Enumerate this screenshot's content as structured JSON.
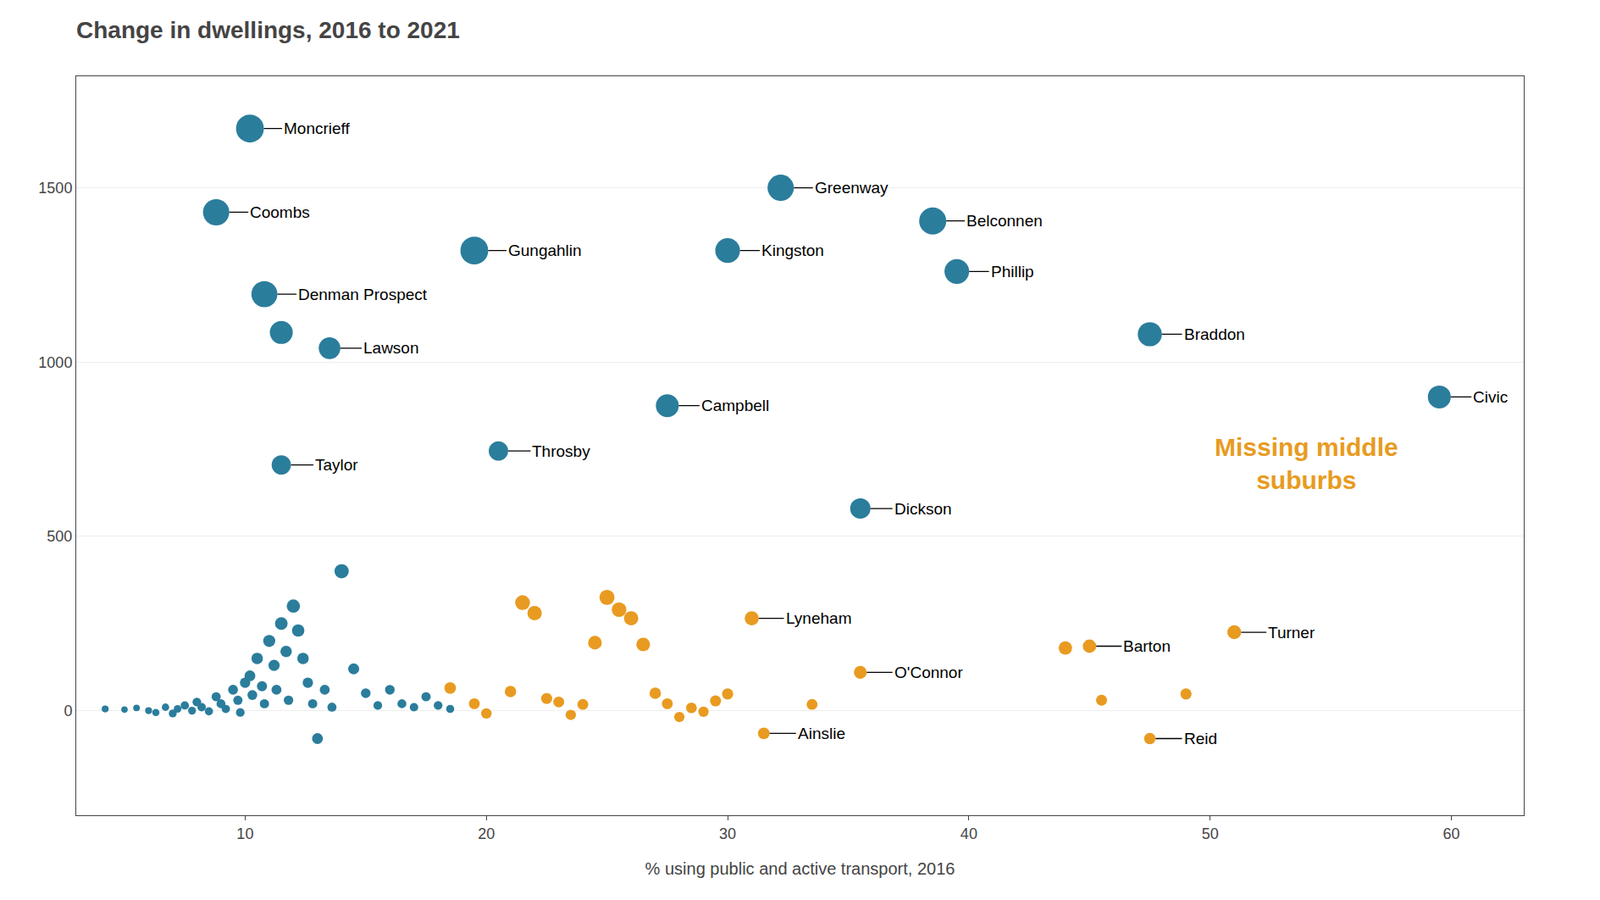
{
  "chart_data": {
    "type": "scatter",
    "title": "Change in dwellings, 2016 to 2021",
    "x_label": "% using public and active transport, 2016",
    "xlim": [
      3,
      63
    ],
    "ylim": [
      -300,
      1820
    ],
    "xticks": [
      10,
      20,
      30,
      40,
      50,
      60
    ],
    "yticks": [
      0,
      500,
      1000,
      1500
    ],
    "grid": "y",
    "series": [
      {
        "color": "#2b7d9c",
        "x": [
          4.2,
          5.0,
          5.5,
          6.0,
          6.3,
          6.7,
          7.0,
          7.2,
          7.5,
          7.8,
          8.0,
          8.2,
          8.5,
          8.8,
          9.0,
          9.2,
          9.5,
          9.7,
          9.8,
          10.0,
          10.2,
          10.3,
          10.5,
          10.7,
          10.8,
          11.0,
          11.2,
          11.3,
          11.5,
          11.7,
          11.8,
          12.0,
          12.2,
          12.4,
          12.6,
          12.8,
          13.0,
          13.3,
          13.6,
          14.0,
          14.5,
          15.0,
          15.5,
          16.0,
          16.5,
          17.0,
          17.5,
          18.0,
          18.5
        ],
        "y": [
          5,
          3,
          8,
          0,
          -5,
          10,
          -8,
          5,
          15,
          0,
          25,
          10,
          -2,
          40,
          20,
          5,
          60,
          30,
          -5,
          80,
          100,
          45,
          150,
          70,
          20,
          200,
          130,
          60,
          250,
          170,
          30,
          300,
          230,
          150,
          80,
          20,
          -80,
          60,
          10,
          400,
          120,
          50,
          15,
          60,
          20,
          10,
          40,
          15,
          5
        ],
        "sizes": [
          35,
          30,
          32,
          35,
          38,
          40,
          45,
          42,
          50,
          45,
          55,
          52,
          48,
          60,
          58,
          50,
          70,
          62,
          55,
          78,
          85,
          70,
          95,
          75,
          62,
          105,
          90,
          72,
          115,
          95,
          65,
          128,
          112,
          95,
          78,
          62,
          85,
          72,
          60,
          148,
          88,
          68,
          55,
          68,
          58,
          52,
          62,
          55,
          48
        ]
      },
      {
        "color": "#e89b20",
        "x": [
          18.5,
          19.5,
          20.0,
          21.0,
          21.5,
          22.0,
          22.5,
          23.0,
          23.5,
          24.0,
          24.5,
          25.0,
          25.5,
          26.0,
          26.5,
          27.0,
          27.5,
          28.0,
          28.5,
          29.0,
          29.5,
          30.0,
          33.5,
          44.0,
          45.5,
          49.0
        ],
        "y": [
          65,
          20,
          -8,
          55,
          310,
          280,
          35,
          25,
          -12,
          18,
          195,
          325,
          290,
          265,
          190,
          50,
          20,
          -18,
          8,
          -3,
          28,
          48,
          18,
          180,
          30,
          48
        ],
        "sizes": [
          100,
          85,
          80,
          95,
          160,
          150,
          88,
          85,
          78,
          85,
          135,
          165,
          155,
          148,
          135,
          95,
          85,
          78,
          82,
          78,
          88,
          92,
          85,
          130,
          88,
          92
        ]
      },
      {
        "color": "#2b7d9c",
        "x": [
          8.8,
          10.2,
          10.8,
          11.5,
          13.5,
          11.5,
          19.5,
          20.5,
          27.5,
          30.0,
          32.2,
          35.5,
          38.5,
          39.5,
          47.5,
          59.5
        ],
        "y": [
          1430,
          1670,
          1195,
          1085,
          1040,
          705,
          1320,
          745,
          875,
          1320,
          1500,
          580,
          1405,
          1260,
          1080,
          900
        ],
        "sizes": [
          500,
          560,
          490,
          380,
          340,
          270,
          560,
          270,
          380,
          440,
          500,
          300,
          530,
          440,
          420,
          380
        ],
        "labels": [
          "Coombs",
          "Moncrieff",
          "Denman Prospect",
          null,
          "Lawson",
          "Taylor",
          "Gungahlin",
          "Throsby",
          "Campbell",
          "Kingston",
          "Greenway",
          "Dickson",
          "Belconnen",
          "Phillip",
          "Braddon",
          "Civic"
        ]
      },
      {
        "color": "#e89b20",
        "x": [
          31.0,
          31.5,
          35.5,
          45.0,
          47.5,
          51.0
        ],
        "y": [
          265,
          -65,
          110,
          185,
          -80,
          225
        ],
        "sizes": [
          145,
          100,
          120,
          130,
          95,
          140
        ],
        "labels": [
          "Lyneham",
          "Ainslie",
          "O'Connor",
          "Barton",
          "Reid",
          "Turner"
        ]
      }
    ],
    "annotations": [
      {
        "text": "Missing middle\nsuburbs",
        "x": 54,
        "y": 710,
        "color": "#e89b20"
      }
    ]
  }
}
